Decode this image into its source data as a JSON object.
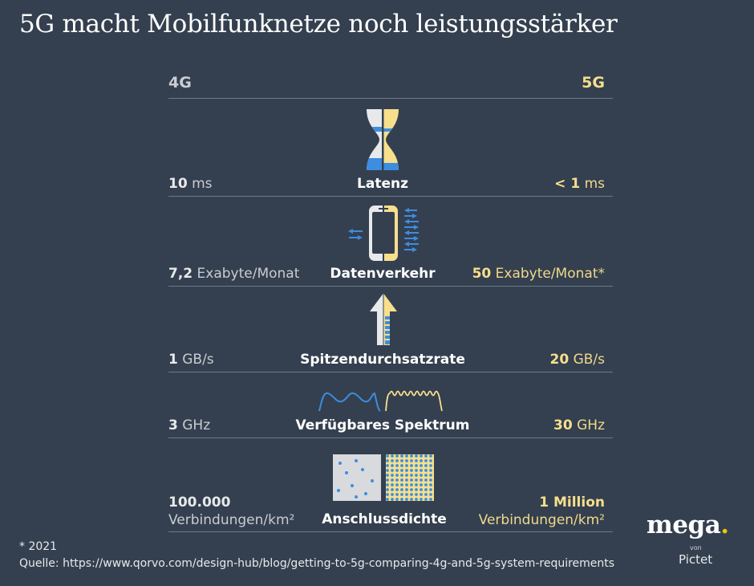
{
  "title": "5G macht Mobilfunknetze noch leistungsstärker",
  "header": {
    "left": "4G",
    "right": "5G"
  },
  "colors": {
    "background": "#34404f",
    "accent_4g": "#c9ccd1",
    "accent_5g": "#f7df8c",
    "blue": "#3d8de0"
  },
  "rows": [
    {
      "label": "Latenz",
      "left_value": "10",
      "left_unit": " ms",
      "right_value": "< 1",
      "right_unit": " ms",
      "icon": "hourglass-icon"
    },
    {
      "label": "Datenverkehr",
      "left_value": "7,2",
      "left_unit": " Exabyte/Monat",
      "right_value": "50",
      "right_unit": " Exabyte/Monat*",
      "icon": "smartphone-data-icon"
    },
    {
      "label": "Spitzendurchsatzrate",
      "left_value": "1",
      "left_unit": " GB/s",
      "right_value": "20",
      "right_unit": " GB/s",
      "icon": "upload-arrow-icon"
    },
    {
      "label": "Verfügbares Spektrum",
      "left_value": "3",
      "left_unit": " GHz",
      "right_value": "30",
      "right_unit": " GHz",
      "icon": "wave-spectrum-icon"
    },
    {
      "label": "Anschlussdichte",
      "left_value": "100.000",
      "left_unit": "Verbindungen/km²",
      "right_value": "1 Million",
      "right_unit": "Verbindungen/km²",
      "icon": "dot-density-icon"
    }
  ],
  "footnote": "* 2021",
  "source": "Quelle: https://www.qorvo.com/design-hub/blog/getting-to-5g-comparing-4g-and-5g-system-requirements",
  "logo": {
    "name": "mega",
    "dot": ".",
    "von": "von",
    "brand": "Pictet"
  }
}
